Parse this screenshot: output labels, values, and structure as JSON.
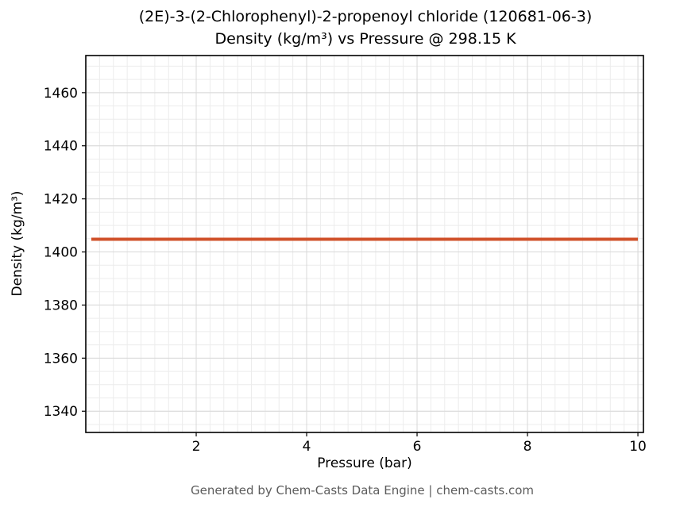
{
  "title_line1": "(2E)-3-(2-Chlorophenyl)-2-propenoyl chloride (120681-06-3)",
  "title_line2": "Density (kg/m³) vs Pressure @ 298.15 K",
  "footer": "Generated by Chem-Casts Data Engine | chem-casts.com",
  "chart_data": {
    "type": "line",
    "title": "(2E)-3-(2-Chlorophenyl)-2-propenoyl chloride (120681-06-3) Density (kg/m³) vs Pressure @ 298.15 K",
    "xlabel": "Pressure (bar)",
    "ylabel": "Density (kg/m³)",
    "x": [
      0.1,
      10
    ],
    "series": [
      {
        "name": "Density",
        "values": [
          1404.8,
          1404.8
        ]
      }
    ],
    "xlim": [
      0,
      10.1
    ],
    "ylim": [
      1332,
      1474
    ],
    "xticks": [
      2,
      4,
      6,
      8,
      10
    ],
    "yticks": [
      1340,
      1360,
      1380,
      1400,
      1420,
      1440,
      1460
    ],
    "x_minor_step": 0.25,
    "y_minor_step": 5,
    "grid": true,
    "legend": "none",
    "line_color": "#d0512a",
    "line_width": 4,
    "minor_grid_color": "#ececec",
    "major_grid_color": "#d8d8d8",
    "axis_border_color": "#000000"
  }
}
